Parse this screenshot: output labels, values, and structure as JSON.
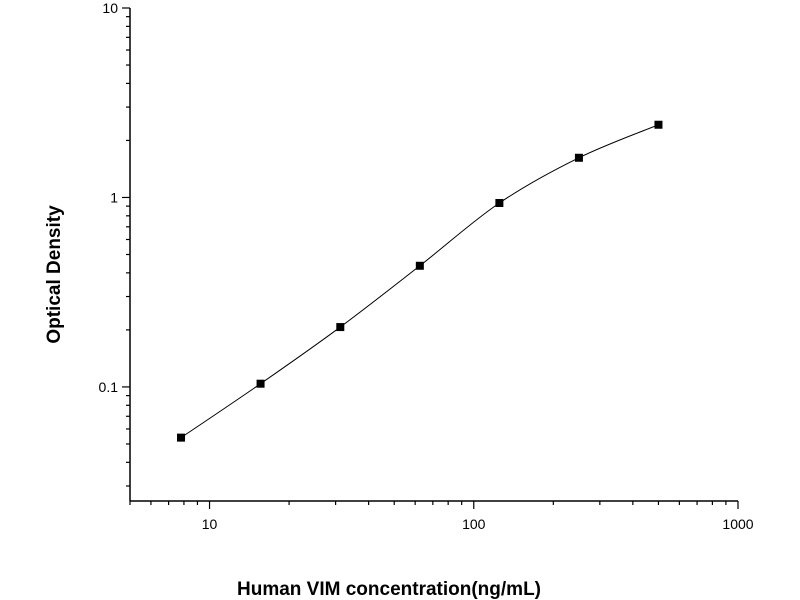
{
  "chart_data": {
    "type": "scatter",
    "title": "",
    "xlabel": "Human VIM concentration(ng/mL)",
    "ylabel": "Optical Density",
    "xscale": "log",
    "yscale": "log",
    "xlim": [
      5,
      1000
    ],
    "ylim": [
      0.025,
      10
    ],
    "grid": false,
    "legend": "none",
    "x_ticks": [
      {
        "value": 10,
        "label": "10"
      },
      {
        "value": 100,
        "label": "100"
      },
      {
        "value": 1000,
        "label": "1000"
      }
    ],
    "y_ticks": [
      {
        "value": 0.1,
        "label": "0.1"
      },
      {
        "value": 1,
        "label": "1"
      },
      {
        "value": 10,
        "label": "10"
      }
    ],
    "series": [
      {
        "x": [
          7.8,
          15.6,
          31.25,
          62.5,
          125,
          250,
          500
        ],
        "y": [
          0.054,
          0.104,
          0.207,
          0.436,
          0.935,
          1.62,
          2.42
        ],
        "marker": "square",
        "fit_curve": true
      }
    ],
    "color": "#000000"
  }
}
